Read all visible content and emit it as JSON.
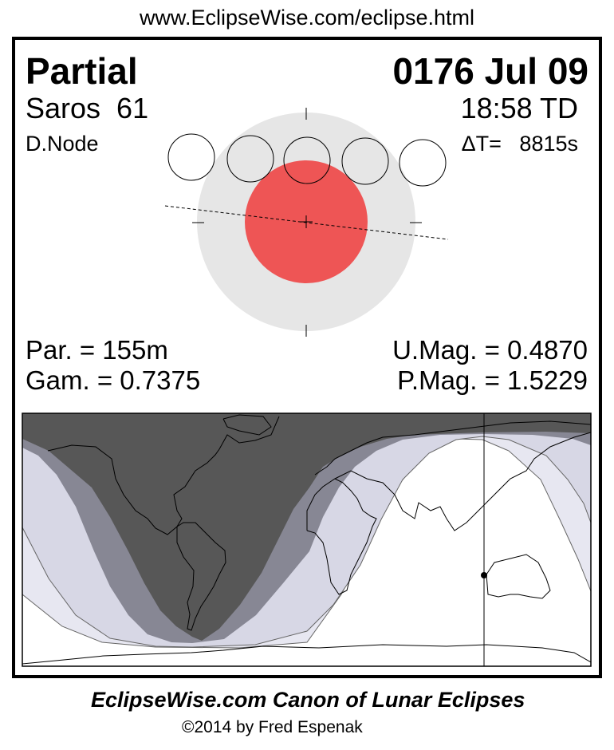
{
  "header": {
    "url": "www.EclipseWise.com/eclipse.html"
  },
  "eclipse": {
    "type": "Partial",
    "date": "0176 Jul 09",
    "saros": "Saros  61",
    "time": "18:58 TD",
    "node": "D.Node",
    "delta_t": "ΔT=   8815s",
    "partial_duration": "Par. = 155m",
    "gamma": "Gam. = 0.7375",
    "umbral_magnitude": "U.Mag. = 0.4870",
    "penumbral_magnitude": "P.Mag. = 1.5229"
  },
  "colors": {
    "umbra": "#ee5555",
    "penumbra": "#e6e6e6",
    "map_night": "#575757",
    "map_umbral_band": "#878794",
    "map_penumbral": "#d7d7e5",
    "map_penumbral_light": "#e7e7f1"
  },
  "footer": {
    "title": "EclipseWise.com Canon of Lunar Eclipses",
    "copyright": "©2014 by Fred Espenak"
  }
}
